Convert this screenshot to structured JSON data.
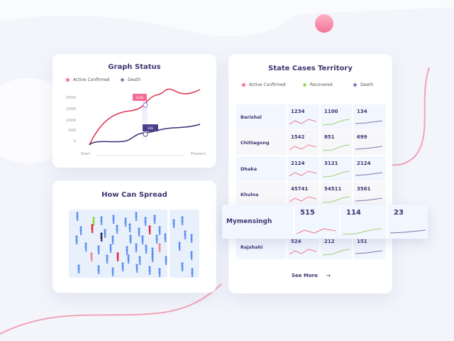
{
  "colors": {
    "active": "#ee4466",
    "recovered": "#7bc43c",
    "death": "#4a3f8a",
    "accent": "#f28aa8"
  },
  "graph": {
    "title": "Graph Status",
    "legend": [
      "Active Confirmed",
      "Death"
    ],
    "y_ticks": [
      "250K",
      "200K",
      "100K",
      "50K",
      "0"
    ],
    "x_start": "Start",
    "x_end": "Present",
    "tooltip_active": "220k",
    "tooltip_death": "33k"
  },
  "spread": {
    "title": "How Can Spread"
  },
  "territory": {
    "title": "State Cases Territory",
    "legend": [
      "Active Confirmed",
      "Recovered",
      "Death"
    ],
    "rows": [
      {
        "name": "Barishal",
        "active": "1234",
        "recovered": "1100",
        "death": "134"
      },
      {
        "name": "Chittagong",
        "active": "1542",
        "recovered": "851",
        "death": "699"
      },
      {
        "name": "Dhaka",
        "active": "2124",
        "recovered": "3121",
        "death": "2124"
      },
      {
        "name": "Khulna",
        "active": "45741",
        "recovered": "54511",
        "death": "3561"
      },
      {
        "name": "Rajshahi",
        "active": "524",
        "recovered": "212",
        "death": "151"
      }
    ],
    "highlight": {
      "name": "Mymensingh",
      "active": "515",
      "recovered": "114",
      "death": "23"
    },
    "see_more": "See More"
  }
}
